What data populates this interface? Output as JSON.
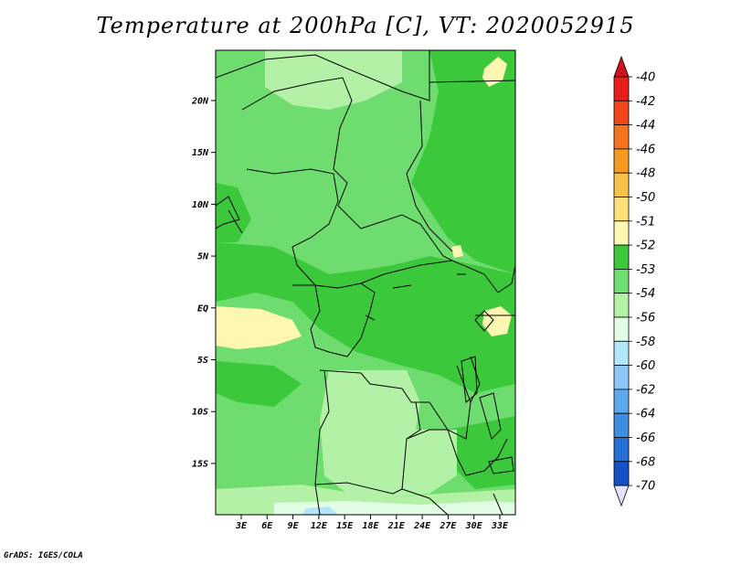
{
  "title": "Temperature at 200hPa [C], VT: 2020052915",
  "credit": "GrADS: IGES/COLA",
  "map": {
    "lat_labels": [
      "20N",
      "15N",
      "10N",
      "5N",
      "EQ",
      "5S",
      "10S",
      "15S"
    ],
    "lon_labels": [
      "3E",
      "6E",
      "9E",
      "12E",
      "15E",
      "18E",
      "21E",
      "24E",
      "27E",
      "30E",
      "33E"
    ]
  },
  "colorbar": {
    "levels": [
      {
        "label": "-40",
        "color": "#e8201c"
      },
      {
        "label": "-42",
        "color": "#f2461c"
      },
      {
        "label": "-44",
        "color": "#f5731e"
      },
      {
        "label": "-46",
        "color": "#f79a22"
      },
      {
        "label": "-48",
        "color": "#f9c24b"
      },
      {
        "label": "-50",
        "color": "#fde078"
      },
      {
        "label": "-51",
        "color": "#fef7b2"
      },
      {
        "label": "-52",
        "color": "#3bc93b"
      },
      {
        "label": "-53",
        "color": "#6fdc6f"
      },
      {
        "label": "-54",
        "color": "#b3f2a6"
      },
      {
        "label": "-56",
        "color": "#e1fde4"
      },
      {
        "label": "-58",
        "color": "#b3e5fb"
      },
      {
        "label": "-60",
        "color": "#8ec6f5"
      },
      {
        "label": "-62",
        "color": "#5ea9ec"
      },
      {
        "label": "-64",
        "color": "#3d8de0"
      },
      {
        "label": "-66",
        "color": "#2670d7"
      },
      {
        "label": "-68",
        "color": "#1550c8"
      },
      {
        "label": "-70",
        "color": "#0a2aa8"
      }
    ],
    "top_color": "#d0121a",
    "bottom_color": "#e6e0ff",
    "deep_color": "#07197a"
  },
  "fields": {
    "background": "#6fdc6f",
    "warm": "#3bc93b",
    "cool": "#b3f2a6",
    "yellow": "#fef7b2",
    "pale": "#e1fde4",
    "blue": "#b3e5fb"
  }
}
